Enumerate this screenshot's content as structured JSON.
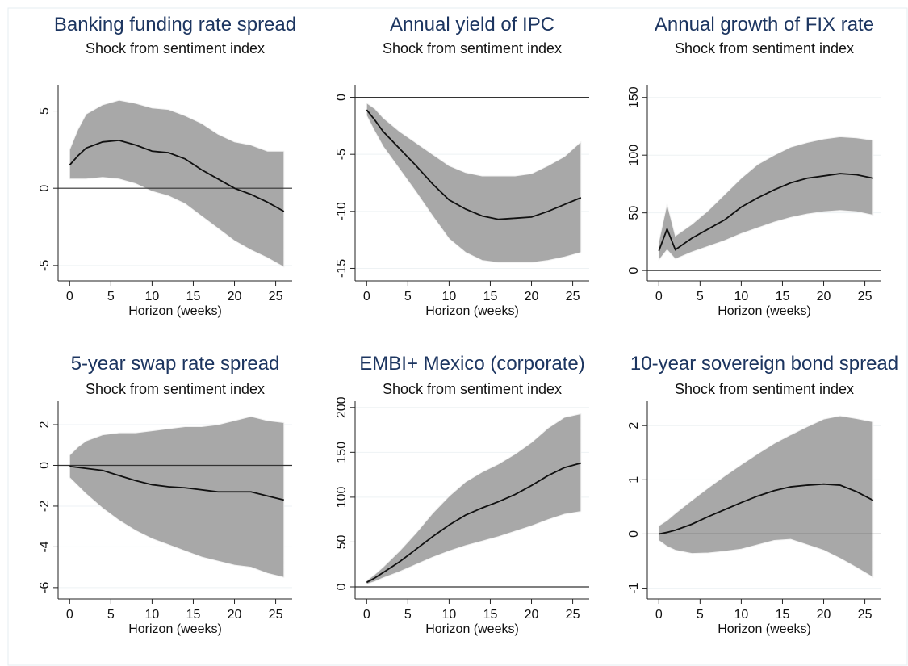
{
  "chart_data": [
    {
      "type": "line",
      "title": "Banking funding rate spread",
      "subtitle": "Shock from sentiment index",
      "x_label": "Horizon (weeks)",
      "x": [
        0,
        1,
        2,
        4,
        6,
        8,
        10,
        12,
        14,
        16,
        18,
        20,
        22,
        24,
        26
      ],
      "values": [
        1.5,
        2.1,
        2.6,
        3.0,
        3.1,
        2.8,
        2.4,
        2.3,
        1.9,
        1.2,
        0.6,
        0,
        -0.4,
        -0.9,
        -1.5
      ],
      "upper": [
        2.5,
        3.8,
        4.8,
        5.4,
        5.7,
        5.5,
        5.2,
        5.1,
        4.7,
        4.2,
        3.5,
        3.0,
        2.8,
        2.4,
        2.4
      ],
      "lower": [
        0.6,
        0.6,
        0.6,
        0.7,
        0.6,
        0.3,
        -0.2,
        -0.5,
        -1.0,
        -1.8,
        -2.6,
        -3.4,
        -4.0,
        -4.5,
        -5.1
      ],
      "color": "#111111",
      "band_color": "#a8a8a8",
      "reference_line": 0,
      "xlim": [
        -1.4,
        27
      ],
      "ylim": [
        -6,
        6.7
      ],
      "xticks": [
        0,
        5,
        10,
        15,
        20,
        25
      ],
      "yticks": [
        -5,
        0,
        5
      ]
    },
    {
      "type": "line",
      "title": "Annual yield of IPC",
      "subtitle": "Shock from sentiment index",
      "x_label": "Horizon (weeks)",
      "x": [
        0,
        1,
        2,
        4,
        6,
        8,
        10,
        12,
        14,
        16,
        18,
        20,
        22,
        24,
        26
      ],
      "values": [
        -1.1,
        -2,
        -3,
        -4.5,
        -6,
        -7.6,
        -9,
        -9.8,
        -10.4,
        -10.7,
        -10.6,
        -10.5,
        -10,
        -9.4,
        -8.8
      ],
      "upper": [
        -0.5,
        -1,
        -1.8,
        -3,
        -4,
        -5,
        -6,
        -6.6,
        -6.9,
        -6.9,
        -6.9,
        -6.7,
        -6,
        -5.2,
        -3.9
      ],
      "lower": [
        -1.6,
        -3,
        -4.3,
        -6.3,
        -8.3,
        -10.4,
        -12.4,
        -13.6,
        -14.3,
        -14.5,
        -14.5,
        -14.5,
        -14.3,
        -14,
        -13.6
      ],
      "color": "#111111",
      "band_color": "#a8a8a8",
      "reference_line": 0,
      "xlim": [
        -1.4,
        27
      ],
      "ylim": [
        -16.1,
        1.1
      ],
      "xticks": [
        0,
        5,
        10,
        15,
        20,
        25
      ],
      "yticks": [
        -15,
        -10,
        -5,
        0
      ]
    },
    {
      "type": "line",
      "title": "Annual growth of FIX rate",
      "subtitle": "Shock from sentiment index",
      "x_label": "Horizon (weeks)",
      "x": [
        0,
        1,
        2,
        4,
        6,
        8,
        10,
        12,
        14,
        16,
        18,
        20,
        22,
        24,
        26
      ],
      "values": [
        17,
        36,
        18,
        28,
        36,
        44,
        55,
        63,
        70,
        76,
        80,
        82,
        84,
        83,
        80
      ],
      "upper": [
        25,
        58,
        30,
        40,
        52,
        66,
        80,
        92,
        100,
        107,
        111,
        114,
        116,
        115,
        113
      ],
      "lower": [
        9,
        18,
        10,
        16,
        21,
        26,
        32,
        37,
        42,
        46,
        49,
        51,
        52,
        51,
        48
      ],
      "color": "#111111",
      "band_color": "#a8a8a8",
      "reference_line": 0,
      "xlim": [
        -1.4,
        27
      ],
      "ylim": [
        -9,
        161
      ],
      "xticks": [
        0,
        5,
        10,
        15,
        20,
        25
      ],
      "yticks": [
        0,
        50,
        100,
        150
      ]
    },
    {
      "type": "line",
      "title": "5-year swap rate spread",
      "subtitle": "Shock from sentiment index",
      "x_label": "Horizon (weeks)",
      "x": [
        0,
        1,
        2,
        4,
        6,
        8,
        10,
        12,
        14,
        16,
        18,
        20,
        22,
        24,
        26
      ],
      "values": [
        -0.05,
        -0.1,
        -0.15,
        -0.25,
        -0.5,
        -0.75,
        -0.95,
        -1.05,
        -1.1,
        -1.2,
        -1.3,
        -1.3,
        -1.3,
        -1.5,
        -1.7
      ],
      "upper": [
        0.5,
        0.9,
        1.2,
        1.5,
        1.6,
        1.6,
        1.7,
        1.8,
        1.9,
        1.9,
        2.0,
        2.2,
        2.4,
        2.2,
        2.1
      ],
      "lower": [
        -0.6,
        -1.0,
        -1.4,
        -2.1,
        -2.7,
        -3.2,
        -3.6,
        -3.9,
        -4.2,
        -4.5,
        -4.7,
        -4.9,
        -5.0,
        -5.3,
        -5.5
      ],
      "color": "#111111",
      "band_color": "#a8a8a8",
      "reference_line": 0,
      "xlim": [
        -1.4,
        27
      ],
      "ylim": [
        -6.56,
        3.15
      ],
      "xticks": [
        0,
        5,
        10,
        15,
        20,
        25
      ],
      "yticks": [
        -6,
        -4,
        -2,
        0,
        2
      ]
    },
    {
      "type": "line",
      "title": "EMBI+ Mexico (corporate)",
      "subtitle": "Shock from sentiment index",
      "x_label": "Horizon (weeks)",
      "x": [
        0,
        1,
        2,
        4,
        6,
        8,
        10,
        12,
        14,
        16,
        18,
        20,
        22,
        24,
        26
      ],
      "values": [
        5,
        10,
        16,
        28,
        42,
        56,
        69,
        80,
        88,
        95,
        103,
        113,
        124,
        133,
        138
      ],
      "upper": [
        7,
        14,
        22,
        40,
        60,
        82,
        101,
        117,
        128,
        137,
        148,
        161,
        177,
        189,
        193
      ],
      "lower": [
        3,
        6,
        10,
        17,
        25,
        33,
        40,
        46,
        51,
        56,
        62,
        68,
        75,
        81,
        84
      ],
      "color": "#111111",
      "band_color": "#a8a8a8",
      "reference_line": 0,
      "xlim": [
        -1.4,
        27
      ],
      "ylim": [
        -13.5,
        207
      ],
      "xticks": [
        0,
        5,
        10,
        15,
        20,
        25
      ],
      "yticks": [
        0,
        50,
        100,
        150,
        200
      ]
    },
    {
      "type": "line",
      "title": "10-year sovereign bond spread",
      "subtitle": "Shock from sentiment index",
      "x_label": "Horizon (weeks)",
      "x": [
        0,
        1,
        2,
        4,
        6,
        8,
        10,
        12,
        14,
        16,
        18,
        20,
        22,
        24,
        26
      ],
      "values": [
        0,
        0.03,
        0.07,
        0.18,
        0.32,
        0.45,
        0.58,
        0.7,
        0.8,
        0.87,
        0.9,
        0.92,
        0.9,
        0.78,
        0.62
      ],
      "upper": [
        0.15,
        0.25,
        0.38,
        0.62,
        0.85,
        1.07,
        1.28,
        1.48,
        1.67,
        1.83,
        1.98,
        2.12,
        2.18,
        2.13,
        2.07
      ],
      "lower": [
        -0.12,
        -0.23,
        -0.3,
        -0.36,
        -0.35,
        -0.32,
        -0.28,
        -0.2,
        -0.12,
        -0.1,
        -0.2,
        -0.3,
        -0.45,
        -0.62,
        -0.8
      ],
      "color": "#111111",
      "band_color": "#a8a8a8",
      "reference_line": 0,
      "xlim": [
        -1.4,
        27
      ],
      "ylim": [
        -1.2,
        2.45
      ],
      "xticks": [
        0,
        5,
        10,
        15,
        20,
        25
      ],
      "yticks": [
        -1,
        0,
        1,
        2
      ]
    }
  ]
}
